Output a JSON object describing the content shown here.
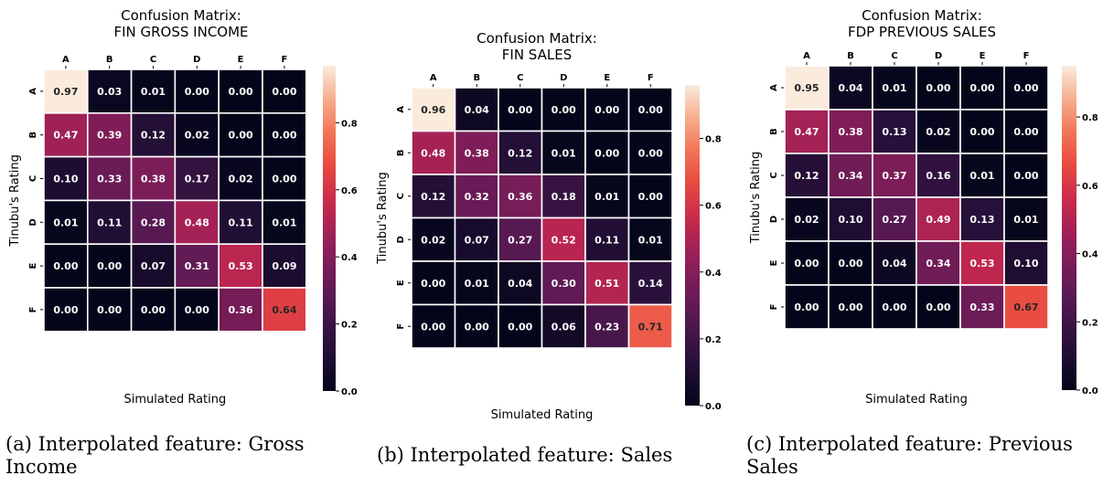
{
  "chart_data": [
    {
      "type": "heatmap",
      "title": "Confusion Matrix:",
      "subtitle": "FIN GROSS INCOME",
      "xlabel": "Simulated Rating",
      "ylabel": "Tinubu's Rating",
      "x_categories": [
        "A",
        "B",
        "C",
        "D",
        "E",
        "F"
      ],
      "y_categories": [
        "A",
        "B",
        "C",
        "D",
        "E",
        "F"
      ],
      "values": [
        [
          0.97,
          0.03,
          0.01,
          0.0,
          0.0,
          0.0
        ],
        [
          0.47,
          0.39,
          0.12,
          0.02,
          0.0,
          0.0
        ],
        [
          0.1,
          0.33,
          0.38,
          0.17,
          0.02,
          0.0
        ],
        [
          0.01,
          0.11,
          0.28,
          0.48,
          0.11,
          0.01
        ],
        [
          0.0,
          0.0,
          0.07,
          0.31,
          0.53,
          0.09
        ],
        [
          0.0,
          0.0,
          0.0,
          0.0,
          0.36,
          0.64
        ]
      ],
      "colorbar_ticks": [
        0.0,
        0.2,
        0.4,
        0.6,
        0.8
      ],
      "colorbar_range": [
        0,
        0.97
      ],
      "colormap": "rocket",
      "caption": "(a) Interpolated feature: Gross Income"
    },
    {
      "type": "heatmap",
      "title": "Confusion Matrix:",
      "subtitle": "FIN  SALES",
      "xlabel": "Simulated Rating",
      "ylabel": "Tinubu's Rating",
      "x_categories": [
        "A",
        "B",
        "C",
        "D",
        "E",
        "F"
      ],
      "y_categories": [
        "A",
        "B",
        "C",
        "D",
        "E",
        "F"
      ],
      "values": [
        [
          0.96,
          0.04,
          0.0,
          0.0,
          0.0,
          0.0
        ],
        [
          0.48,
          0.38,
          0.12,
          0.01,
          0.0,
          0.0
        ],
        [
          0.12,
          0.32,
          0.36,
          0.18,
          0.01,
          0.0
        ],
        [
          0.02,
          0.07,
          0.27,
          0.52,
          0.11,
          0.01
        ],
        [
          0.0,
          0.01,
          0.04,
          0.3,
          0.51,
          0.14
        ],
        [
          0.0,
          0.0,
          0.0,
          0.06,
          0.23,
          0.71
        ]
      ],
      "colorbar_ticks": [
        0.0,
        0.2,
        0.4,
        0.6,
        0.8
      ],
      "colorbar_range": [
        0,
        0.96
      ],
      "colormap": "rocket",
      "caption": "(b) Interpolated feature: Sales"
    },
    {
      "type": "heatmap",
      "title": "Confusion Matrix:",
      "subtitle": "FDP PREVIOUS SALES",
      "xlabel": "Simulated Rating",
      "ylabel": "Tinubu's Rating",
      "x_categories": [
        "A",
        "B",
        "C",
        "D",
        "E",
        "F"
      ],
      "y_categories": [
        "A",
        "B",
        "C",
        "D",
        "E",
        "F"
      ],
      "values": [
        [
          0.95,
          0.04,
          0.01,
          0.0,
          0.0,
          0.0
        ],
        [
          0.47,
          0.38,
          0.13,
          0.02,
          0.0,
          0.0
        ],
        [
          0.12,
          0.34,
          0.37,
          0.16,
          0.01,
          0.0
        ],
        [
          0.02,
          0.1,
          0.27,
          0.49,
          0.13,
          0.01
        ],
        [
          0.0,
          0.0,
          0.04,
          0.34,
          0.53,
          0.1
        ],
        [
          0.0,
          0.0,
          0.0,
          0.0,
          0.33,
          0.67
        ]
      ],
      "colorbar_ticks": [
        0.0,
        0.2,
        0.4,
        0.6,
        0.8
      ],
      "colorbar_range": [
        0,
        0.95
      ],
      "colormap": "rocket",
      "caption": "(c) Interpolated feature: Previous Sales"
    }
  ]
}
